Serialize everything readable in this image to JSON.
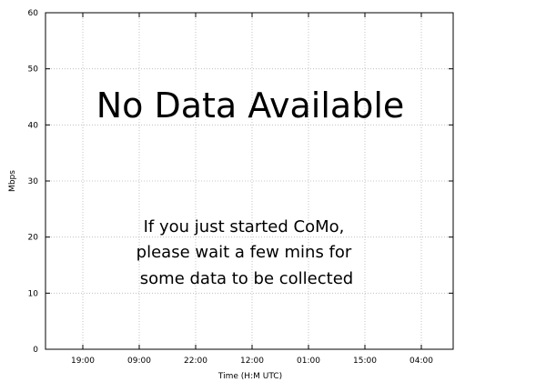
{
  "chart_data": {
    "type": "line",
    "title": "",
    "xlabel": "Time (H:M UTC)",
    "ylabel": "Mbps",
    "ylim": [
      0,
      60
    ],
    "yticks": [
      0,
      10,
      20,
      30,
      40,
      50,
      60
    ],
    "xticks": [
      "19:00",
      "09:00",
      "22:00",
      "12:00",
      "01:00",
      "15:00",
      "04:00"
    ],
    "grid": true,
    "series": [],
    "annotations": {
      "headline": "No Data Available",
      "message_lines": [
        "If you just started CoMo,",
        "please wait a few mins for",
        "some data to be collected"
      ]
    }
  }
}
